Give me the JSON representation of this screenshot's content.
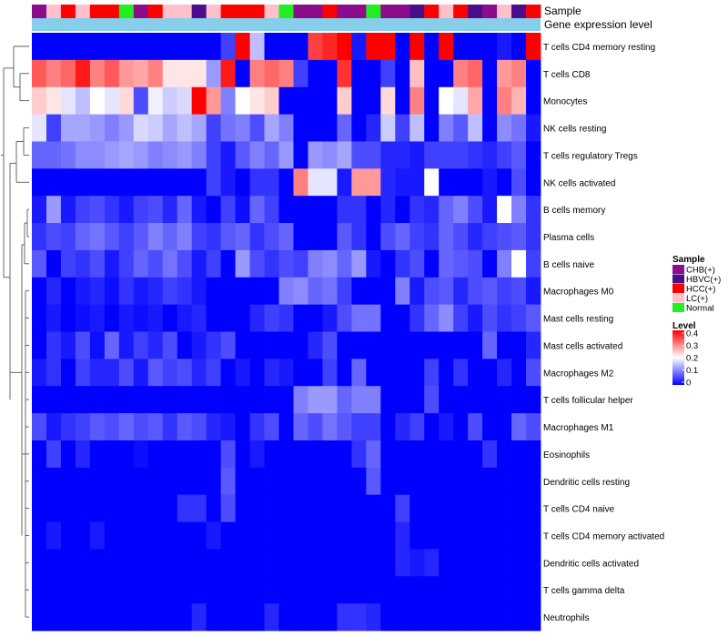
{
  "chart_data": {
    "type": "heatmap",
    "title": "",
    "annotation_labels": [
      "Sample",
      "Gene expression level"
    ],
    "rows": [
      "T cells CD4 memory resting",
      "T cells CD8",
      "Monocytes",
      "NK cells resting",
      "T cells regulatory  Tregs",
      "NK cells activated",
      "B cells memory",
      "Plasma cells",
      "B cells naive",
      "Macrophages M0",
      "Mast cells resting",
      "Mast cells activated",
      "Macrophages M2",
      "T cells follicular helper",
      "Macrophages M1",
      "Eosinophils",
      "Dendritic cells resting",
      "T cells CD4 naive",
      "T cells CD4 memory activated",
      "Dendritic cells activated",
      "T cells gamma delta",
      "Neutrophils"
    ],
    "sample_groups": [
      "CHB(+)",
      "LC(+)",
      "HCC(+)",
      "LC(+)",
      "HCC(+)",
      "HCC(+)",
      "Normal",
      "CHB(+)",
      "HCC(+)",
      "LC(+)",
      "LC(+)",
      "HBVC(+)",
      "LC(+)",
      "HCC(+)",
      "HCC(+)",
      "HCC(+)",
      "LC(+)",
      "Normal",
      "CHB(+)",
      "CHB(+)",
      "HCC(+)",
      "CHB(+)",
      "CHB(+)",
      "Normal",
      "CHB(+)",
      "CHB(+)",
      "HBVC(+)",
      "HCC(+)",
      "LC(+)",
      "HCC(+)",
      "HBVC(+)",
      "CHB(+)",
      "LC(+)",
      "HBVC(+)",
      "HCC(+)"
    ],
    "expression_band": "#87CEEB",
    "values": [
      [
        0,
        0,
        0,
        0,
        0,
        0,
        0,
        0,
        0,
        0,
        0,
        0,
        0,
        0.05,
        0.4,
        0.15,
        0,
        0,
        0,
        0.35,
        0.37,
        0.4,
        0.02,
        0.4,
        0.4,
        0,
        0.4,
        0,
        0.4,
        0,
        0,
        0,
        0.02,
        0,
        0.4
      ],
      [
        0.33,
        0.3,
        0.32,
        0.38,
        0.3,
        0.33,
        0.28,
        0.27,
        0.3,
        0.22,
        0.22,
        0.22,
        0.12,
        0.38,
        0,
        0.3,
        0.32,
        0.3,
        0.05,
        0,
        0,
        0.36,
        0,
        0,
        0.05,
        0,
        0.25,
        0,
        0,
        0.3,
        0.32,
        0,
        0.28,
        0.3,
        0
      ],
      [
        0.24,
        0.22,
        0.18,
        0.15,
        0.2,
        0.18,
        0.23,
        0.06,
        0.19,
        0.16,
        0.17,
        0.4,
        0.28,
        0.1,
        0.2,
        0.22,
        0.24,
        0,
        0,
        0,
        0,
        0.24,
        0,
        0,
        0.23,
        0,
        0.3,
        0,
        0.2,
        0.18,
        0.27,
        0,
        0.3,
        0.26,
        0
      ],
      [
        0.18,
        0.05,
        0.13,
        0.13,
        0.12,
        0.1,
        0.12,
        0.17,
        0.16,
        0.13,
        0.15,
        0.13,
        0.05,
        0.09,
        0.1,
        0.06,
        0.13,
        0.1,
        0,
        0,
        0,
        0.08,
        0,
        0.03,
        0.16,
        0.05,
        0.15,
        0,
        0.1,
        0.07,
        0.15,
        0,
        0.11,
        0.09,
        0.02
      ],
      [
        0.08,
        0.08,
        0.09,
        0.11,
        0.11,
        0.12,
        0.13,
        0.12,
        0.1,
        0.11,
        0.12,
        0.1,
        0.05,
        0.02,
        0.07,
        0.1,
        0.08,
        0.12,
        0,
        0.12,
        0.11,
        0.13,
        0.06,
        0.06,
        0.03,
        0.03,
        0.02,
        0.05,
        0.05,
        0.05,
        0.04,
        0.03,
        0.05,
        0.07,
        0
      ],
      [
        0,
        0,
        0,
        0,
        0,
        0,
        0,
        0,
        0,
        0,
        0,
        0,
        0.05,
        0.02,
        0,
        0.04,
        0.04,
        0,
        0.3,
        0.18,
        0.18,
        0.02,
        0.28,
        0.28,
        0.03,
        0.02,
        0.02,
        0.2,
        0,
        0,
        0,
        0.02,
        0,
        0.06,
        0
      ],
      [
        0.02,
        0.12,
        0.02,
        0.05,
        0.06,
        0.04,
        0.02,
        0.05,
        0.06,
        0.03,
        0.08,
        0.02,
        0,
        0.05,
        0.01,
        0.08,
        0.05,
        0,
        0,
        0,
        0,
        0.04,
        0.04,
        0,
        0.03,
        0,
        0.04,
        0.03,
        0.08,
        0.1,
        0.06,
        0.02,
        0.2,
        0.1,
        0.04
      ],
      [
        0.04,
        0.06,
        0.05,
        0.08,
        0.09,
        0.07,
        0.05,
        0.07,
        0.1,
        0.08,
        0.1,
        0.05,
        0.04,
        0.07,
        0.08,
        0.04,
        0.06,
        0.08,
        0,
        0,
        0,
        0.07,
        0.04,
        0,
        0.06,
        0.08,
        0.05,
        0.04,
        0.08,
        0.06,
        0.03,
        0.05,
        0.06,
        0.07,
        0.04
      ],
      [
        0.07,
        0,
        0.05,
        0.04,
        0.06,
        0.02,
        0.05,
        0.08,
        0.06,
        0.09,
        0.06,
        0.02,
        0.05,
        0,
        0.12,
        0.06,
        0.04,
        0.06,
        0.05,
        0.1,
        0.11,
        0.08,
        0.12,
        0.02,
        0,
        0.04,
        0.06,
        0,
        0.08,
        0.07,
        0.06,
        0,
        0.1,
        0.2,
        0.05
      ],
      [
        0,
        0.03,
        0,
        0.02,
        0.03,
        0.01,
        0.04,
        0.02,
        0.03,
        0.05,
        0.04,
        0.02,
        0,
        0,
        0,
        0,
        0,
        0.1,
        0.11,
        0.08,
        0.09,
        0.05,
        0,
        0,
        0,
        0.1,
        0.02,
        0.06,
        0.07,
        0.03,
        0.06,
        0.07,
        0.05,
        0.06,
        0.02
      ],
      [
        0,
        0.02,
        0,
        0.01,
        0.02,
        0,
        0.02,
        0.01,
        0.02,
        0,
        0.02,
        0.03,
        0,
        0,
        0,
        0.03,
        0.05,
        0.04,
        0,
        0,
        0.02,
        0.06,
        0.09,
        0.09,
        0,
        0,
        0.04,
        0.08,
        0.11,
        0.05,
        0.02,
        0.06,
        0.04,
        0.05,
        0.07
      ],
      [
        0,
        0.04,
        0.02,
        0.06,
        0.01,
        0.08,
        0.02,
        0.05,
        0.03,
        0.06,
        0,
        0.02,
        0.04,
        0.06,
        0,
        0,
        0,
        0,
        0,
        0.03,
        0.06,
        0,
        0,
        0,
        0,
        0,
        0,
        0,
        0,
        0,
        0,
        0.08,
        0,
        0,
        0.03
      ],
      [
        0.02,
        0.04,
        0,
        0.05,
        0.03,
        0.03,
        0.06,
        0.02,
        0.07,
        0.05,
        0.06,
        0.03,
        0.05,
        0,
        0.02,
        0,
        0.03,
        0.02,
        0,
        0,
        0.05,
        0,
        0.08,
        0,
        0,
        0,
        0,
        0.05,
        0,
        0.04,
        0,
        0,
        0.03,
        0,
        0.06
      ],
      [
        0,
        0,
        0,
        0,
        0,
        0,
        0,
        0,
        0,
        0,
        0,
        0,
        0,
        0,
        0,
        0,
        0,
        0,
        0.1,
        0.12,
        0.12,
        0.08,
        0.1,
        0.1,
        0,
        0,
        0,
        0.06,
        0,
        0,
        0,
        0,
        0,
        0,
        0
      ],
      [
        0.06,
        0.02,
        0.04,
        0.05,
        0.07,
        0.06,
        0.08,
        0.06,
        0.07,
        0.04,
        0.07,
        0.06,
        0.03,
        0.02,
        0,
        0.04,
        0.06,
        0,
        0.08,
        0.06,
        0.09,
        0.07,
        0.05,
        0.05,
        0,
        0.03,
        0.05,
        0,
        0.02,
        0,
        0.06,
        0,
        0,
        0.08,
        0.06
      ],
      [
        0,
        0.05,
        0,
        0.03,
        0,
        0,
        0,
        0.01,
        0,
        0,
        0,
        0,
        0,
        0.06,
        0,
        0.02,
        0,
        0,
        0,
        0,
        0,
        0,
        0.04,
        0.08,
        0,
        0,
        0,
        0,
        0,
        0,
        0,
        0.04,
        0,
        0,
        0
      ],
      [
        0,
        0,
        0,
        0,
        0,
        0,
        0,
        0,
        0,
        0,
        0,
        0,
        0,
        0.07,
        0,
        0,
        0,
        0,
        0,
        0,
        0,
        0,
        0,
        0.07,
        0,
        0,
        0,
        0,
        0,
        0,
        0,
        0,
        0,
        0,
        0
      ],
      [
        0,
        0,
        0,
        0,
        0,
        0,
        0,
        0,
        0,
        0,
        0.04,
        0.04,
        0,
        0.06,
        0,
        0,
        0,
        0,
        0,
        0,
        0,
        0,
        0,
        0,
        0,
        0.05,
        0,
        0,
        0,
        0,
        0,
        0,
        0,
        0,
        0
      ],
      [
        0,
        0.02,
        0,
        0,
        0.02,
        0,
        0,
        0,
        0,
        0,
        0,
        0,
        0.02,
        0,
        0,
        0,
        0,
        0,
        0,
        0,
        0,
        0,
        0,
        0,
        0,
        0.03,
        0,
        0,
        0,
        0,
        0,
        0,
        0,
        0,
        0
      ],
      [
        0,
        0,
        0,
        0,
        0,
        0,
        0,
        0,
        0,
        0,
        0,
        0,
        0,
        0,
        0,
        0,
        0,
        0,
        0,
        0,
        0,
        0,
        0,
        0,
        0,
        0.03,
        0.02,
        0.03,
        0,
        0,
        0,
        0,
        0,
        0,
        0
      ],
      [
        0,
        0,
        0,
        0,
        0,
        0,
        0,
        0,
        0,
        0,
        0,
        0,
        0,
        0,
        0,
        0,
        0,
        0,
        0,
        0,
        0,
        0,
        0,
        0,
        0,
        0,
        0,
        0,
        0,
        0,
        0,
        0,
        0,
        0,
        0
      ],
      [
        0,
        0,
        0,
        0,
        0,
        0,
        0,
        0,
        0,
        0,
        0,
        0.03,
        0,
        0,
        0,
        0,
        0.03,
        0,
        0,
        0,
        0,
        0.04,
        0.04,
        0.03,
        0,
        0,
        0,
        0,
        0,
        0,
        0,
        0,
        0,
        0,
        0
      ]
    ],
    "legend": {
      "sample_title": "Sample",
      "sample_items": [
        {
          "label": "CHB(+)",
          "color": "#8B0D8B"
        },
        {
          "label": "HBVC(+)",
          "color": "#4B0E8A"
        },
        {
          "label": "HCC(+)",
          "color": "#FF0000"
        },
        {
          "label": "LC(+)",
          "color": "#FFC0CB"
        },
        {
          "label": "Normal",
          "color": "#22EE22"
        }
      ],
      "level_title": "Level",
      "level_ticks": [
        "0.4",
        "0.3",
        "0.2",
        "0.1",
        "0"
      ],
      "level_range": [
        0,
        0.4
      ]
    },
    "colorscale": [
      "#0000FF",
      "#FFFFFF",
      "#FF0000"
    ]
  }
}
